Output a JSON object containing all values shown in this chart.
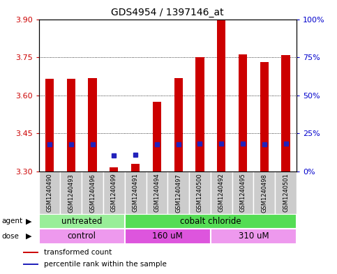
{
  "title": "GDS4954 / 1397146_at",
  "samples": [
    "GSM1240490",
    "GSM1240493",
    "GSM1240496",
    "GSM1240499",
    "GSM1240491",
    "GSM1240494",
    "GSM1240497",
    "GSM1240500",
    "GSM1240492",
    "GSM1240495",
    "GSM1240498",
    "GSM1240501"
  ],
  "transformed_count": [
    3.665,
    3.665,
    3.668,
    3.315,
    3.33,
    3.575,
    3.668,
    3.75,
    3.9,
    3.76,
    3.73,
    3.758
  ],
  "percentile_rank_pct": [
    17.5,
    17.5,
    17.8,
    10.5,
    10.8,
    17.8,
    17.5,
    18.3,
    18.3,
    18.3,
    17.8,
    18.3
  ],
  "ymin": 3.3,
  "ymax": 3.9,
  "yticks": [
    3.3,
    3.45,
    3.6,
    3.75,
    3.9
  ],
  "right_yticks": [
    0,
    25,
    50,
    75,
    100
  ],
  "right_yticklabels": [
    "0%",
    "25%",
    "50%",
    "75%",
    "100%"
  ],
  "bar_color": "#cc0000",
  "blue_color": "#2222bb",
  "bar_bottom": 3.3,
  "agent_groups": [
    {
      "label": "untreated",
      "start": 0,
      "end": 3,
      "color": "#99ee99"
    },
    {
      "label": "cobalt chloride",
      "start": 4,
      "end": 11,
      "color": "#55dd55"
    }
  ],
  "dose_groups": [
    {
      "label": "control",
      "start": 0,
      "end": 3,
      "color": "#ee99ee"
    },
    {
      "label": "160 uM",
      "start": 4,
      "end": 7,
      "color": "#dd55dd"
    },
    {
      "label": "310 uM",
      "start": 8,
      "end": 11,
      "color": "#ee99ee"
    }
  ],
  "legend_items": [
    {
      "label": "transformed count",
      "color": "#cc0000"
    },
    {
      "label": "percentile rank within the sample",
      "color": "#2222bb"
    }
  ],
  "left_tick_color": "#cc0000",
  "right_tick_color": "#0000cc",
  "bg_color": "#ffffff",
  "bar_width": 0.4,
  "blue_marker_size": 5,
  "sample_box_color": "#cccccc"
}
